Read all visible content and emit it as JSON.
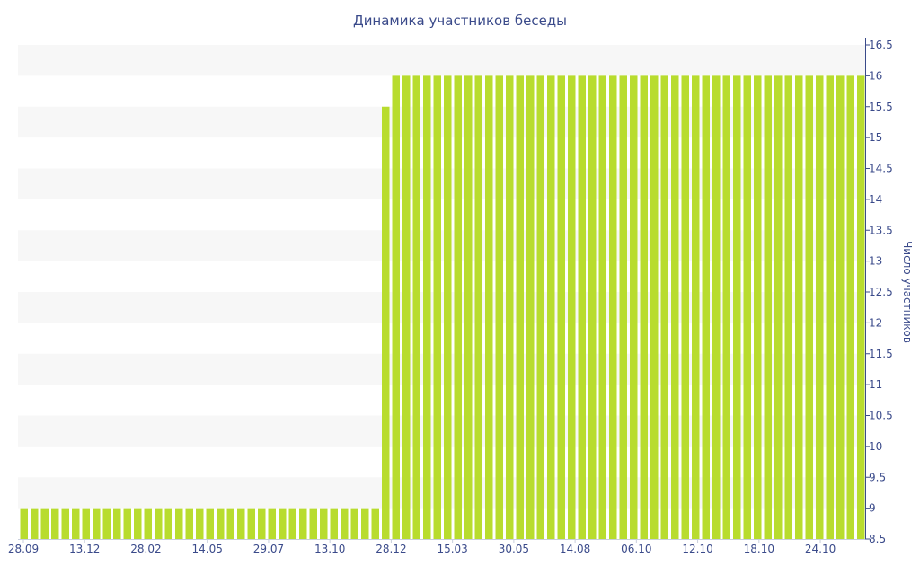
{
  "chart_data": {
    "type": "bar",
    "title": "Динамика участников беседы",
    "ylabel": "Число участников",
    "xlabel": "",
    "ylim": [
      8.5,
      16.5
    ],
    "yticks": [
      8.5,
      9,
      9.5,
      10,
      10.5,
      11,
      11.5,
      12,
      12.5,
      13,
      13.5,
      14,
      14.5,
      15,
      15.5,
      16,
      16.5
    ],
    "xtick_labels": [
      "28.09",
      "13.12",
      "28.02",
      "14.05",
      "29.07",
      "13.10",
      "28.12",
      "15.03",
      "30.05",
      "14.08",
      "06.10",
      "12.10",
      "18.10",
      "24.10"
    ],
    "grid": "horizontal bands",
    "y_axis_position": "right",
    "bar_color": "#b8dc2e",
    "band_color": "#f7f7f7",
    "series": [
      {
        "values": [
          9,
          9,
          9,
          9,
          9,
          9,
          9,
          9,
          9,
          9,
          9,
          9,
          9,
          9,
          9,
          9,
          9,
          9,
          9,
          9,
          9,
          9,
          9,
          9,
          9,
          9,
          9,
          9,
          9,
          9,
          9,
          9,
          9,
          9,
          9,
          15.5,
          16,
          16,
          16,
          16,
          16,
          16,
          16,
          16,
          16,
          16,
          16,
          16,
          16,
          16,
          16,
          16,
          16,
          16,
          16,
          16,
          16,
          16,
          16,
          16,
          16,
          16,
          16,
          16,
          16,
          16,
          16,
          16,
          16,
          16,
          16,
          16,
          16,
          16,
          16,
          16,
          16,
          16,
          16,
          16,
          16,
          16
        ]
      }
    ]
  }
}
